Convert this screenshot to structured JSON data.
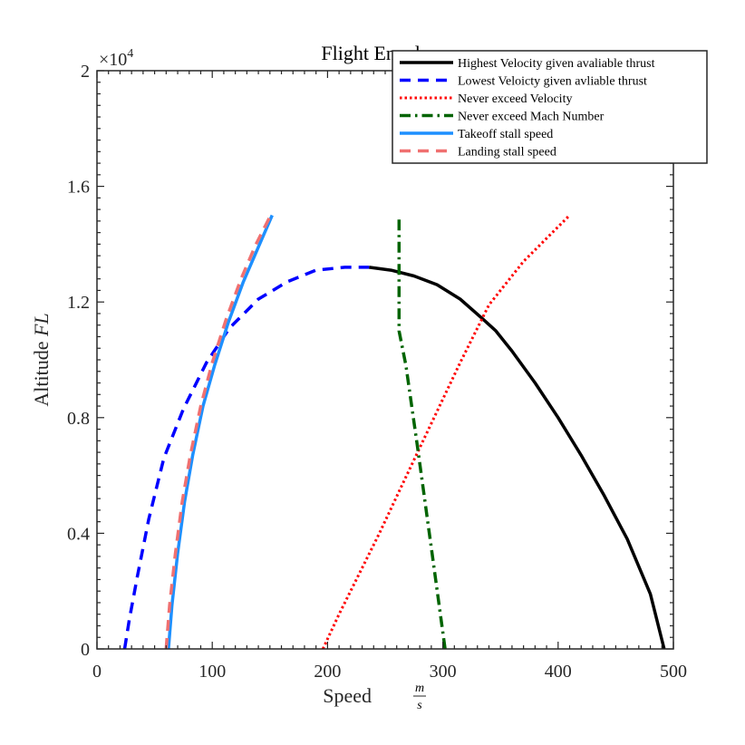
{
  "chart_data": {
    "type": "line",
    "title": "Flight Envelope",
    "xlabel": "Speed",
    "xlabel_unit": {
      "numerator": "m",
      "denominator": "s"
    },
    "ylabel": "Altitude",
    "ylabel_var": "FL",
    "y_multiplier": "×10",
    "y_multiplier_exp": "4",
    "xlim": [
      0,
      500
    ],
    "ylim": [
      0,
      2
    ],
    "xticks": [
      0,
      100,
      200,
      300,
      400,
      500
    ],
    "xtick_labels": [
      "0",
      "100",
      "200",
      "300",
      "400",
      "500"
    ],
    "yticks": [
      0,
      0.4,
      0.8,
      1.2,
      1.6,
      2
    ],
    "ytick_labels": [
      "0",
      "0.4",
      "0.8",
      "1.2",
      "1.6",
      "2"
    ],
    "grid": false,
    "legend_position": "top-right",
    "series": [
      {
        "name": "Highest Velocity given avaliable thrust",
        "color": "#000000",
        "style": "solid",
        "x": [
          236,
          255,
          275,
          295,
          315,
          335,
          346,
          360,
          380,
          400,
          420,
          440,
          460,
          480,
          492
        ],
        "y": [
          1.32,
          1.31,
          1.29,
          1.26,
          1.21,
          1.14,
          1.1,
          1.03,
          0.92,
          0.8,
          0.67,
          0.53,
          0.38,
          0.19,
          0
        ]
      },
      {
        "name": "Lowest Veloicty given avliable thrust",
        "color": "#0000ff",
        "style": "dashed",
        "x": [
          24,
          28,
          35,
          45,
          58,
          75,
          95,
          115,
          140,
          165,
          190,
          215,
          236
        ],
        "y": [
          0,
          0.1,
          0.25,
          0.45,
          0.66,
          0.83,
          0.99,
          1.11,
          1.21,
          1.27,
          1.31,
          1.32,
          1.32
        ]
      },
      {
        "name": "Never exceed Velocity",
        "color": "#ff0000",
        "style": "dotted",
        "x": [
          196,
          210,
          225,
          245,
          265,
          290,
          315,
          340,
          370,
          410
        ],
        "y": [
          0,
          0.12,
          0.24,
          0.4,
          0.57,
          0.78,
          0.99,
          1.19,
          1.34,
          1.5
        ]
      },
      {
        "name": "Never exceed Mach Number",
        "color": "#006400",
        "style": "dashdot",
        "x": [
          302,
          290,
          278,
          268,
          262,
          262
        ],
        "y": [
          0,
          0.35,
          0.7,
          0.98,
          1.1,
          1.5
        ]
      },
      {
        "name": "Takeoff stall speed",
        "color": "#1e90ff",
        "style": "solid",
        "x": [
          62,
          65,
          70,
          76,
          83,
          92,
          102,
          114,
          127,
          140,
          152
        ],
        "y": [
          0,
          0.15,
          0.33,
          0.51,
          0.67,
          0.84,
          0.98,
          1.13,
          1.27,
          1.39,
          1.5
        ]
      },
      {
        "name": "Landing stall speed",
        "color": "#f07070",
        "style": "dashed",
        "x": [
          60,
          63,
          68,
          74,
          81,
          90,
          100,
          112,
          125,
          138,
          152
        ],
        "y": [
          0,
          0.15,
          0.33,
          0.51,
          0.67,
          0.84,
          0.99,
          1.14,
          1.28,
          1.4,
          1.51
        ]
      }
    ]
  }
}
